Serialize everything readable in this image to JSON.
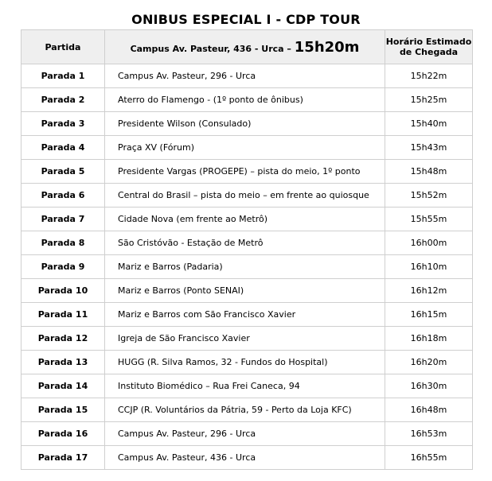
{
  "title": "ONIBUS ESPECIAL I - CDP TOUR",
  "header": {
    "col1": "Partida",
    "col2_text": "Campus Av. Pasteur, 436 - Urca – ",
    "col2_time": "15h20m",
    "col3_line1": "Horário Estimado",
    "col3_line2": "de Chegada"
  },
  "rows": [
    {
      "stop": "Parada 1",
      "location": "Campus Av. Pasteur, 296 - Urca",
      "time": "15h22m"
    },
    {
      "stop": "Parada 2",
      "location": "Aterro do Flamengo - (1º ponto de ônibus)",
      "time": "15h25m"
    },
    {
      "stop": "Parada 3",
      "location": "Presidente Wilson (Consulado)",
      "time": "15h40m"
    },
    {
      "stop": "Parada 4",
      "location": "Praça XV (Fórum)",
      "time": "15h43m"
    },
    {
      "stop": "Parada 5",
      "location": "Presidente Vargas (PROGEPE) – pista do meio, 1º ponto",
      "time": "15h48m"
    },
    {
      "stop": "Parada 6",
      "location": "Central do Brasil – pista do meio – em frente ao quiosque",
      "time": "15h52m"
    },
    {
      "stop": "Parada 7",
      "location": "Cidade Nova (em frente ao Metrô)",
      "time": "15h55m"
    },
    {
      "stop": "Parada 8",
      "location": "São Cristóvão - Estação de Metrô",
      "time": "16h00m"
    },
    {
      "stop": "Parada 9",
      "location": "Mariz e Barros (Padaria)",
      "time": "16h10m"
    },
    {
      "stop": "Parada 10",
      "location": "Mariz e Barros (Ponto SENAI)",
      "time": "16h12m"
    },
    {
      "stop": "Parada 11",
      "location": "Mariz e Barros com São Francisco Xavier",
      "time": "16h15m"
    },
    {
      "stop": "Parada 12",
      "location": "Igreja de São Francisco Xavier",
      "time": "16h18m"
    },
    {
      "stop": "Parada 13",
      "location": "HUGG (R. Silva Ramos, 32 - Fundos do Hospital)",
      "time": "16h20m"
    },
    {
      "stop": "Parada 14",
      "location": "Instituto Biomédico – Rua Frei Caneca, 94",
      "time": "16h30m"
    },
    {
      "stop": "Parada 15",
      "location": "CCJP (R. Voluntários da Pátria, 59 - Perto da Loja KFC)",
      "time": "16h48m"
    },
    {
      "stop": "Parada 16",
      "location": "Campus Av. Pasteur, 296 - Urca",
      "time": "16h53m"
    },
    {
      "stop": "Parada 17",
      "location": "Campus Av. Pasteur, 436 - Urca",
      "time": "16h55m"
    }
  ]
}
